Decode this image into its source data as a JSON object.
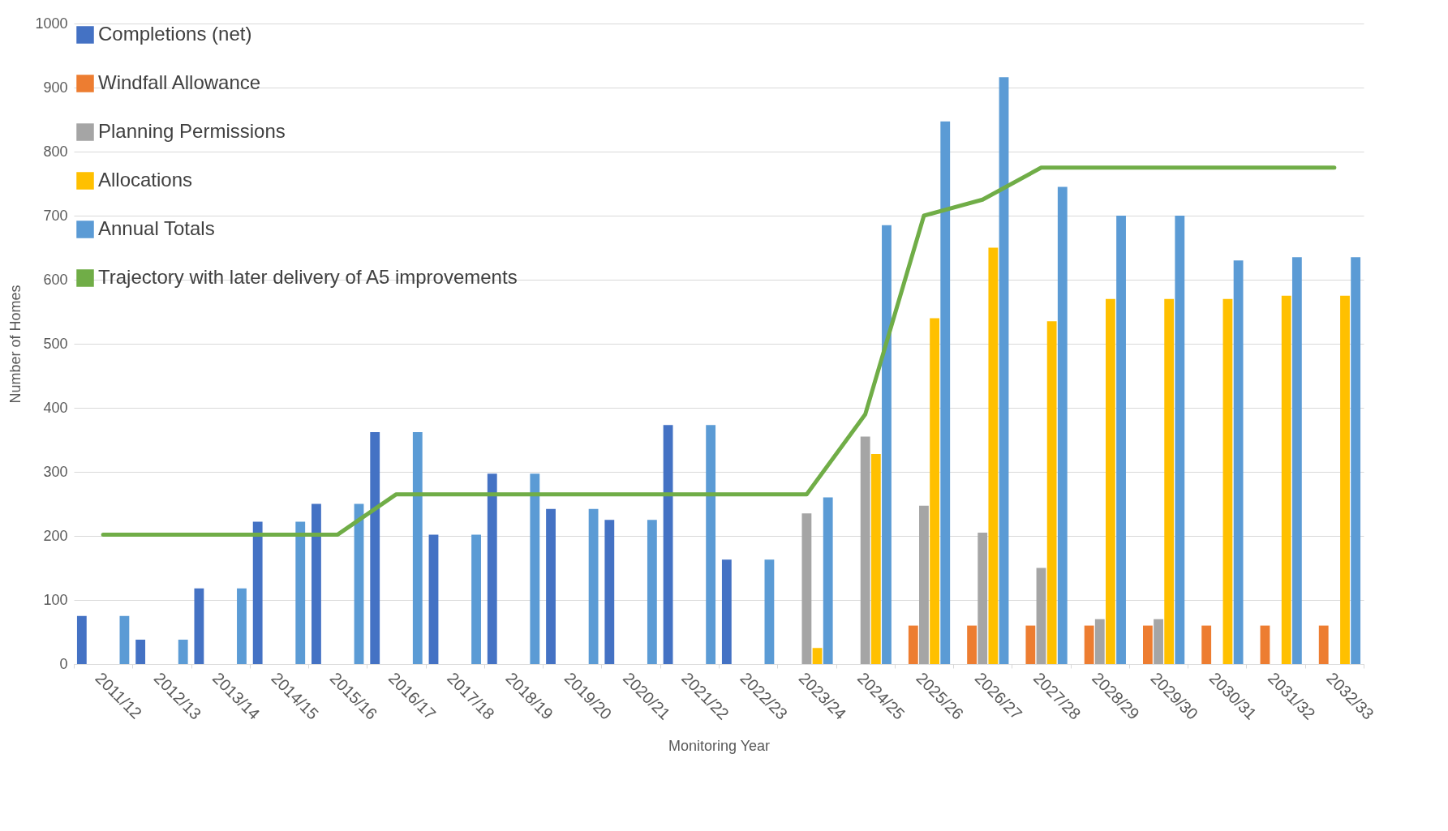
{
  "chart_data": {
    "type": "bar",
    "xlabel": "Monitoring Year",
    "ylabel": "Number of Homes",
    "categories": [
      "2011/12",
      "2012/13",
      "2013/14",
      "2014/15",
      "2015/16",
      "2016/17",
      "2017/18",
      "2018/19",
      "2019/20",
      "2020/21",
      "2021/22",
      "2022/23",
      "2023/24",
      "2024/25",
      "2025/26",
      "2026/27",
      "2027/28",
      "2028/29",
      "2029/30",
      "2030/31",
      "2031/32",
      "2032/33"
    ],
    "series": [
      {
        "name": "Completions (net)",
        "color": "#4472c4",
        "values": [
          75,
          38,
          118,
          222,
          250,
          362,
          202,
          297,
          242,
          225,
          373,
          163,
          null,
          null,
          null,
          null,
          null,
          null,
          null,
          null,
          null,
          null
        ]
      },
      {
        "name": "Windfall Allowance",
        "color": "#ed7d31",
        "values": [
          null,
          null,
          null,
          null,
          null,
          null,
          null,
          null,
          null,
          null,
          null,
          null,
          null,
          null,
          60,
          60,
          60,
          60,
          60,
          60,
          60,
          60
        ]
      },
      {
        "name": "Planning Permissions",
        "color": "#a5a5a5",
        "values": [
          null,
          null,
          null,
          null,
          null,
          null,
          null,
          null,
          null,
          null,
          null,
          null,
          235,
          355,
          247,
          205,
          150,
          70,
          70,
          null,
          null,
          null
        ]
      },
      {
        "name": "Allocations",
        "color": "#ffc000",
        "values": [
          null,
          null,
          null,
          null,
          null,
          null,
          null,
          null,
          null,
          null,
          null,
          null,
          25,
          328,
          540,
          650,
          535,
          570,
          570,
          570,
          575,
          575
        ]
      },
      {
        "name": "Annual Totals",
        "color": "#5b9bd5",
        "values": [
          75,
          38,
          118,
          222,
          250,
          362,
          202,
          297,
          242,
          225,
          373,
          163,
          260,
          685,
          847,
          916,
          745,
          700,
          700,
          630,
          635,
          635
        ]
      },
      {
        "name": "Trajectory with later delivery of A5 improvements",
        "type": "line",
        "color": "#70ad47",
        "values": [
          202,
          202,
          202,
          202,
          202,
          265,
          265,
          265,
          265,
          265,
          265,
          265,
          265,
          390,
          700,
          725,
          775,
          775,
          775,
          775,
          775,
          775
        ]
      }
    ],
    "ylim": [
      0,
      1000
    ],
    "yticks": [
      0,
      100,
      200,
      300,
      400,
      500,
      600,
      700,
      800,
      900,
      1000
    ],
    "grid": "y",
    "legend": "top left"
  }
}
